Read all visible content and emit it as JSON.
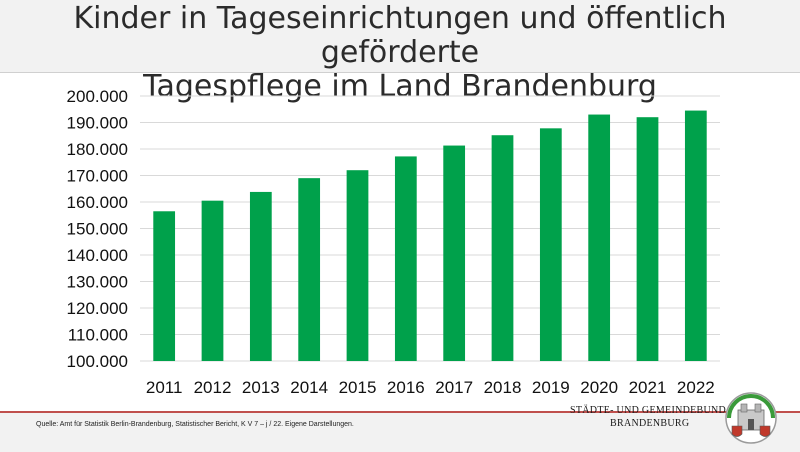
{
  "header": {
    "title_line1": "Kinder in Tageseinrichtungen und öffentlich geförderte",
    "title_line2": "Tagespflege im Land Brandenburg"
  },
  "footer": {
    "source": "Quelle: Amt für Statistik Berlin-Brandenburg, Statistischer Bericht, K V 7 – j / 22. Eigene Darstellungen.",
    "org_line1": "STÄDTE-  UND GEMEINDEBUND",
    "org_line2": "BRANDENBURG",
    "logo_icon": "coat-of-arms-icon"
  },
  "colors": {
    "bar": "#00a14b",
    "grid": "#d9d9d9",
    "accent_line": "#c0504d"
  },
  "chart_data": {
    "type": "bar",
    "categories": [
      "2011",
      "2012",
      "2013",
      "2014",
      "2015",
      "2016",
      "2017",
      "2018",
      "2019",
      "2020",
      "2021",
      "2022"
    ],
    "values": [
      156500,
      160500,
      163800,
      169000,
      172000,
      177200,
      181300,
      185200,
      187800,
      193000,
      192000,
      194500
    ],
    "ylim": [
      100000,
      200000
    ],
    "yticks": [
      100000,
      110000,
      120000,
      130000,
      140000,
      150000,
      160000,
      170000,
      180000,
      190000,
      200000
    ],
    "ytick_labels": [
      "100.000",
      "110.000",
      "120.000",
      "130.000",
      "140.000",
      "150.000",
      "160.000",
      "170.000",
      "180.000",
      "190.000",
      "200.000"
    ],
    "grid": true,
    "title": "",
    "xlabel": "",
    "ylabel": ""
  }
}
